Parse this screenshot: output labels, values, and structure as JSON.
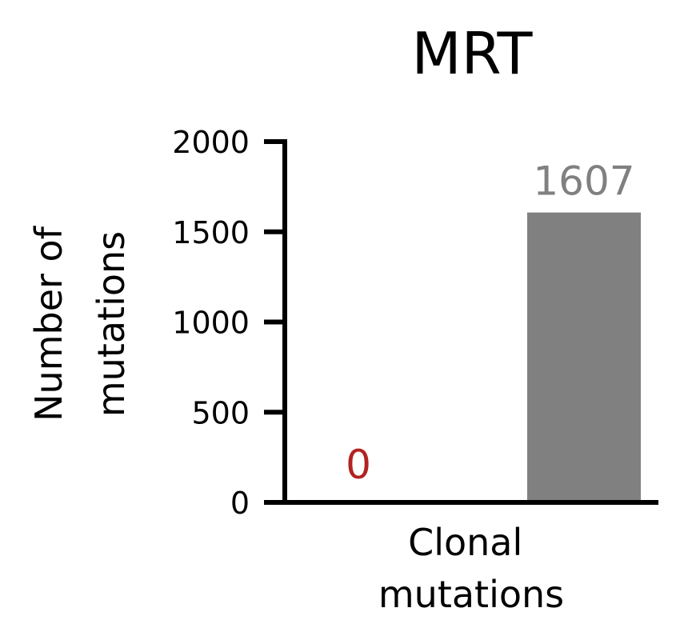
{
  "chart_data": {
    "type": "bar",
    "title": "MRT",
    "ylabel": "Number of mutations",
    "ylabel_lines": [
      "Number of",
      "mutations"
    ],
    "xlabel": "",
    "category_label_lines": [
      "Clonal",
      "mutations"
    ],
    "ylim": [
      0,
      2000
    ],
    "yticks": [
      0,
      500,
      1000,
      1500,
      2000
    ],
    "grid": false,
    "legend": "none",
    "series": [
      {
        "value": 0,
        "label": "0",
        "color": "#b22222"
      },
      {
        "value": 1607,
        "label": "1607",
        "color": "#808080"
      }
    ]
  }
}
